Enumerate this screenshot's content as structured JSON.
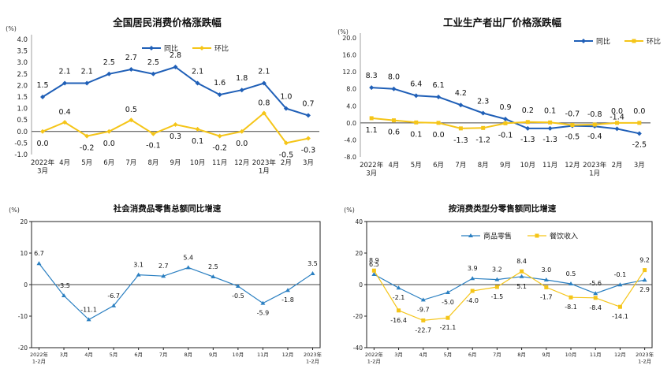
{
  "chart_data": [
    {
      "type": "line",
      "title": "全国居民消费价格涨跌幅",
      "unit": "(%)",
      "y_ticks": [
        "4.0",
        "3.5",
        "3.0",
        "2.5",
        "2.0",
        "1.5",
        "1.0",
        "0.5",
        "0.0",
        "-0.5",
        "-1.0"
      ],
      "ylim": [
        -1.0,
        4.0
      ],
      "categories": [
        [
          "2022年",
          "3月"
        ],
        [
          "4月"
        ],
        [
          "5月"
        ],
        [
          "6月"
        ],
        [
          "7月"
        ],
        [
          "8月"
        ],
        [
          "9月"
        ],
        [
          "10月"
        ],
        [
          "11月"
        ],
        [
          "12月"
        ],
        [
          "2023年",
          "1月"
        ],
        [
          "2月"
        ],
        [
          "3月"
        ]
      ],
      "series": [
        {
          "name": "同比",
          "color": "#1f5fb7",
          "values": [
            1.5,
            2.1,
            2.1,
            2.5,
            2.7,
            2.5,
            2.8,
            2.1,
            1.6,
            1.8,
            2.1,
            1.0,
            0.7
          ],
          "labels": [
            "1.5",
            "2.1",
            "2.1",
            "2.5",
            "2.7",
            "2.5",
            "2.8",
            "2.1",
            "1.6",
            "1.8",
            "2.1",
            "1.0",
            "0.7"
          ]
        },
        {
          "name": "环比",
          "color": "#f5c518",
          "values": [
            0.0,
            0.4,
            -0.2,
            0.0,
            0.5,
            -0.1,
            0.3,
            0.1,
            -0.2,
            0.0,
            0.8,
            -0.5,
            -0.3
          ],
          "labels": [
            "0.0",
            "0.4",
            "-0.2",
            "0.0",
            "0.5",
            "-0.1",
            "0.3",
            "0.1",
            "-0.2",
            "0.0",
            "0.8",
            "-0.5",
            "-0.3"
          ]
        }
      ],
      "legend_position": "top-center"
    },
    {
      "type": "line",
      "title": "工业生产者出厂价格涨跌幅",
      "unit": "(%)",
      "y_ticks": [
        "20.0",
        "16.0",
        "12.0",
        "8.0",
        "4.0",
        "0.0",
        "-4.0",
        "-8.0"
      ],
      "ylim": [
        -8.0,
        20.0
      ],
      "categories": [
        [
          "2022年",
          "3月"
        ],
        [
          "4月"
        ],
        [
          "5月"
        ],
        [
          "6月"
        ],
        [
          "7月"
        ],
        [
          "8月"
        ],
        [
          "9月"
        ],
        [
          "10月"
        ],
        [
          "11月"
        ],
        [
          "12月"
        ],
        [
          "2023年",
          "1月"
        ],
        [
          "2月"
        ],
        [
          "3月"
        ]
      ],
      "series": [
        {
          "name": "同比",
          "color": "#1f5fb7",
          "values": [
            8.3,
            8.0,
            6.4,
            6.1,
            4.2,
            2.3,
            0.9,
            -1.3,
            -1.3,
            -0.7,
            -0.8,
            -1.4,
            -2.5
          ],
          "labels": [
            "8.3",
            "8.0",
            "6.4",
            "6.1",
            "4.2",
            "2.3",
            "0.9",
            "-1.3",
            "-1.3",
            "-0.7",
            "-0.8",
            "-1.4",
            "-2.5"
          ]
        },
        {
          "name": "环比",
          "color": "#f5c518",
          "values": [
            1.1,
            0.6,
            0.1,
            0.0,
            -1.3,
            -1.2,
            -0.1,
            0.2,
            0.1,
            -0.5,
            -0.4,
            0.0,
            0.0
          ],
          "labels": [
            "1.1",
            "0.6",
            "0.1",
            "0.0",
            "-1.3",
            "-1.2",
            "-0.1",
            "0.2",
            "0.1",
            "-0.5",
            "-0.4",
            "0.0",
            "0.0"
          ]
        }
      ],
      "legend_position": "top-right"
    },
    {
      "type": "line",
      "title": "社会消费品零售总额同比增速",
      "unit": "(%)",
      "y_ticks": [
        "20",
        "10",
        "0",
        "-10",
        "-20"
      ],
      "ylim": [
        -20,
        20
      ],
      "categories": [
        [
          "2022年",
          "1-2月"
        ],
        [
          "3月"
        ],
        [
          "4月"
        ],
        [
          "5月"
        ],
        [
          "6月"
        ],
        [
          "7月"
        ],
        [
          "8月"
        ],
        [
          "9月"
        ],
        [
          "10月"
        ],
        [
          "11月"
        ],
        [
          "12月"
        ],
        [
          "2023年",
          "1-2月"
        ]
      ],
      "series": [
        {
          "name": "社会消费品零售总额",
          "color": "#2a7fc1",
          "values": [
            6.7,
            -3.5,
            -11.1,
            -6.7,
            3.1,
            2.7,
            5.4,
            2.5,
            -0.5,
            -5.9,
            -1.8,
            3.5
          ],
          "labels": [
            "6.7",
            "-3.5",
            "-11.1",
            "-6.7",
            "3.1",
            "2.7",
            "5.4",
            "2.5",
            "-0.5",
            "-5.9",
            "-1.8",
            "3.5"
          ]
        }
      ]
    },
    {
      "type": "line",
      "title": "按消费类型分零售额同比增速",
      "unit": "(%)",
      "y_ticks": [
        "40",
        "20",
        "0",
        "-20",
        "-40"
      ],
      "ylim": [
        -40,
        40
      ],
      "categories": [
        [
          "2022年",
          "1-2月"
        ],
        [
          "3月"
        ],
        [
          "4月"
        ],
        [
          "5月"
        ],
        [
          "6月"
        ],
        [
          "7月"
        ],
        [
          "8月"
        ],
        [
          "9月"
        ],
        [
          "10月"
        ],
        [
          "11月"
        ],
        [
          "12月"
        ],
        [
          "2023年",
          "1-2月"
        ]
      ],
      "series": [
        {
          "name": "商品零售",
          "color": "#2a7fc1",
          "values": [
            6.5,
            -2.1,
            -9.7,
            -5.0,
            3.9,
            3.2,
            5.1,
            3.0,
            0.5,
            -5.6,
            -0.1,
            2.9
          ],
          "labels": [
            "6.5",
            "-2.1",
            "-9.7",
            "-5.0",
            "3.9",
            "3.2",
            "5.1",
            "3.0",
            "0.5",
            "-5.6",
            "-0.1",
            "2.9"
          ]
        },
        {
          "name": "餐饮收入",
          "color": "#f5c518",
          "values": [
            8.9,
            -16.4,
            -22.7,
            -21.1,
            -4.0,
            -1.5,
            8.4,
            -1.7,
            -8.1,
            -8.4,
            -14.1,
            9.2
          ],
          "labels": [
            "8.9",
            "-16.4",
            "-22.7",
            "-21.1",
            "-4.0",
            "-1.5",
            "8.4",
            "-1.7",
            "-8.1",
            "-8.4",
            "-14.1",
            "9.2"
          ]
        }
      ],
      "legend_position": "top-center"
    }
  ]
}
